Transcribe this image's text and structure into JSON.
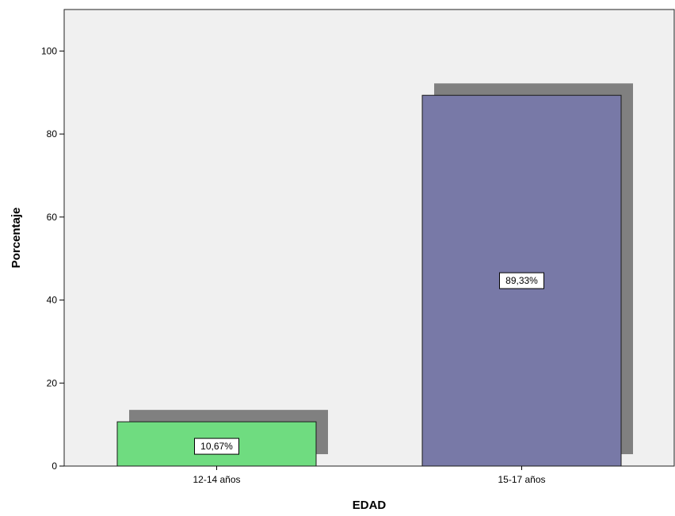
{
  "chart_data": {
    "type": "bar",
    "categories": [
      "12-14 años",
      "15-17 años"
    ],
    "values": [
      10.67,
      89.33
    ],
    "data_labels": [
      "10,67%",
      "89,33%"
    ],
    "title": "",
    "xlabel": "EDAD",
    "ylabel": "Porcentaje",
    "ylim": [
      0,
      110
    ],
    "yticks": [
      0,
      20,
      40,
      60,
      80,
      100
    ],
    "ytick_labels": [
      "0",
      "20",
      "40",
      "60",
      "80",
      "100"
    ],
    "grid": false,
    "bar_shadow": true,
    "colors": {
      "plot_background": "#f0f0f0",
      "bars": [
        "#6fdc80",
        "#7879a7"
      ],
      "bar_edge": "#1a1a1a",
      "shadow": "#808080",
      "axis": "#000000"
    }
  }
}
